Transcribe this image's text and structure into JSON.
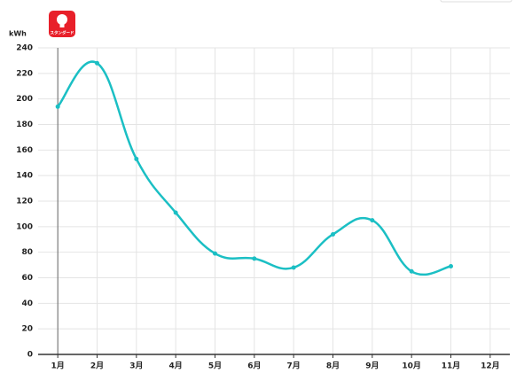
{
  "badge": "スタンダード",
  "chart_data": {
    "type": "line",
    "y_label": "kWh",
    "categories": [
      "1月",
      "2月",
      "3月",
      "4月",
      "5月",
      "6月",
      "7月",
      "8月",
      "9月",
      "10月",
      "11月",
      "12月"
    ],
    "series": [
      {
        "name": "kWh",
        "color": "#1bbfc4",
        "values": [
          194,
          228,
          153,
          111,
          79,
          75,
          68,
          94,
          105,
          65,
          69,
          null
        ]
      }
    ],
    "ylim": [
      0,
      240
    ],
    "yticks": [
      0,
      20,
      40,
      60,
      80,
      100,
      120,
      140,
      160,
      180,
      200,
      220,
      240
    ],
    "grid": true
  }
}
